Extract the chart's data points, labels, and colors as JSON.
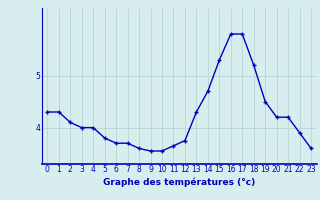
{
  "x": [
    0,
    1,
    2,
    3,
    4,
    5,
    6,
    7,
    8,
    9,
    10,
    11,
    12,
    13,
    14,
    15,
    16,
    17,
    18,
    19,
    20,
    21,
    22,
    23
  ],
  "y": [
    4.3,
    4.3,
    4.1,
    4.0,
    4.0,
    3.8,
    3.7,
    3.7,
    3.6,
    3.55,
    3.55,
    3.65,
    3.75,
    4.3,
    4.7,
    5.3,
    5.8,
    5.8,
    5.2,
    4.5,
    4.2,
    4.2,
    3.9,
    3.6
  ],
  "line_color": "#0000bb",
  "marker": "+",
  "marker_size": 3.5,
  "marker_linewidth": 1.0,
  "bg_color": "#d8eeee",
  "grid_color": "#b8d4d4",
  "axis_color": "#0000bb",
  "xlabel": "Graphe des températures (°c)",
  "xlim": [
    -0.5,
    23.5
  ],
  "ylim": [
    3.3,
    6.3
  ],
  "yticks": [
    4,
    5
  ],
  "label_fontsize": 6.5,
  "tick_fontsize": 5.5,
  "linewidth": 1.0
}
